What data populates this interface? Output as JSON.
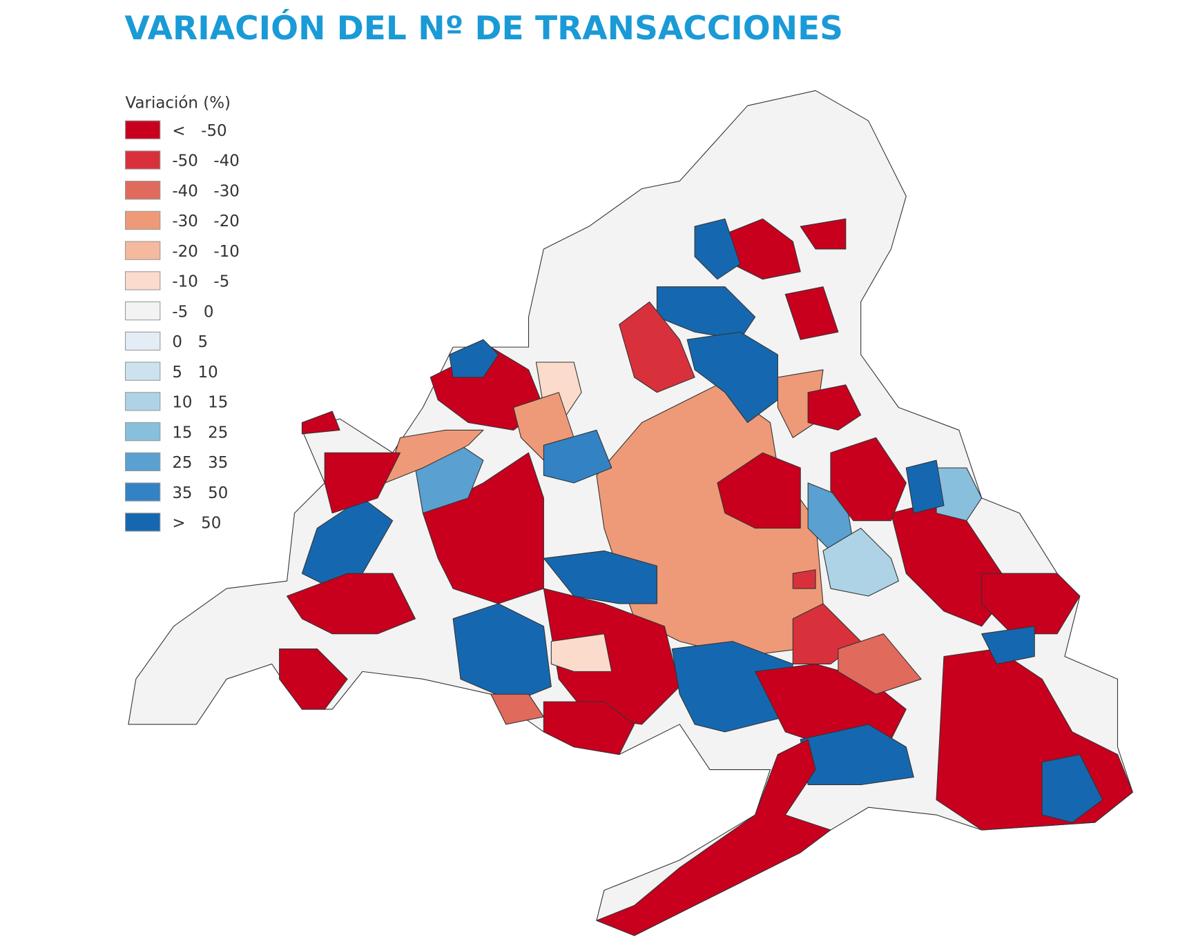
{
  "title": "VARIACIÓN DEL Nº DE TRANSACCIONES",
  "legend": {
    "title": "Variación (%)",
    "entries": [
      {
        "label": "< -50",
        "color": "#c8001e"
      },
      {
        "label": "-50 -40",
        "color": "#d8313b"
      },
      {
        "label": "-40 -30",
        "color": "#e06a5c"
      },
      {
        "label": "-30 -20",
        "color": "#ee9a78"
      },
      {
        "label": "-20 -10",
        "color": "#f5b99d"
      },
      {
        "label": "-10 -5",
        "color": "#fadbcc"
      },
      {
        "label": "-5 0",
        "color": "#f3f3f3"
      },
      {
        "label": "0 5",
        "color": "#e4edf5"
      },
      {
        "label": "5 10",
        "color": "#cce2ef"
      },
      {
        "label": "10 15",
        "color": "#aed3e6"
      },
      {
        "label": "15 25",
        "color": "#88bfdd"
      },
      {
        "label": "25 35",
        "color": "#5aa0d0"
      },
      {
        "label": "35 50",
        "color": "#3382c4"
      },
      {
        "label": "> 50",
        "color": "#1568b0"
      }
    ]
  }
}
